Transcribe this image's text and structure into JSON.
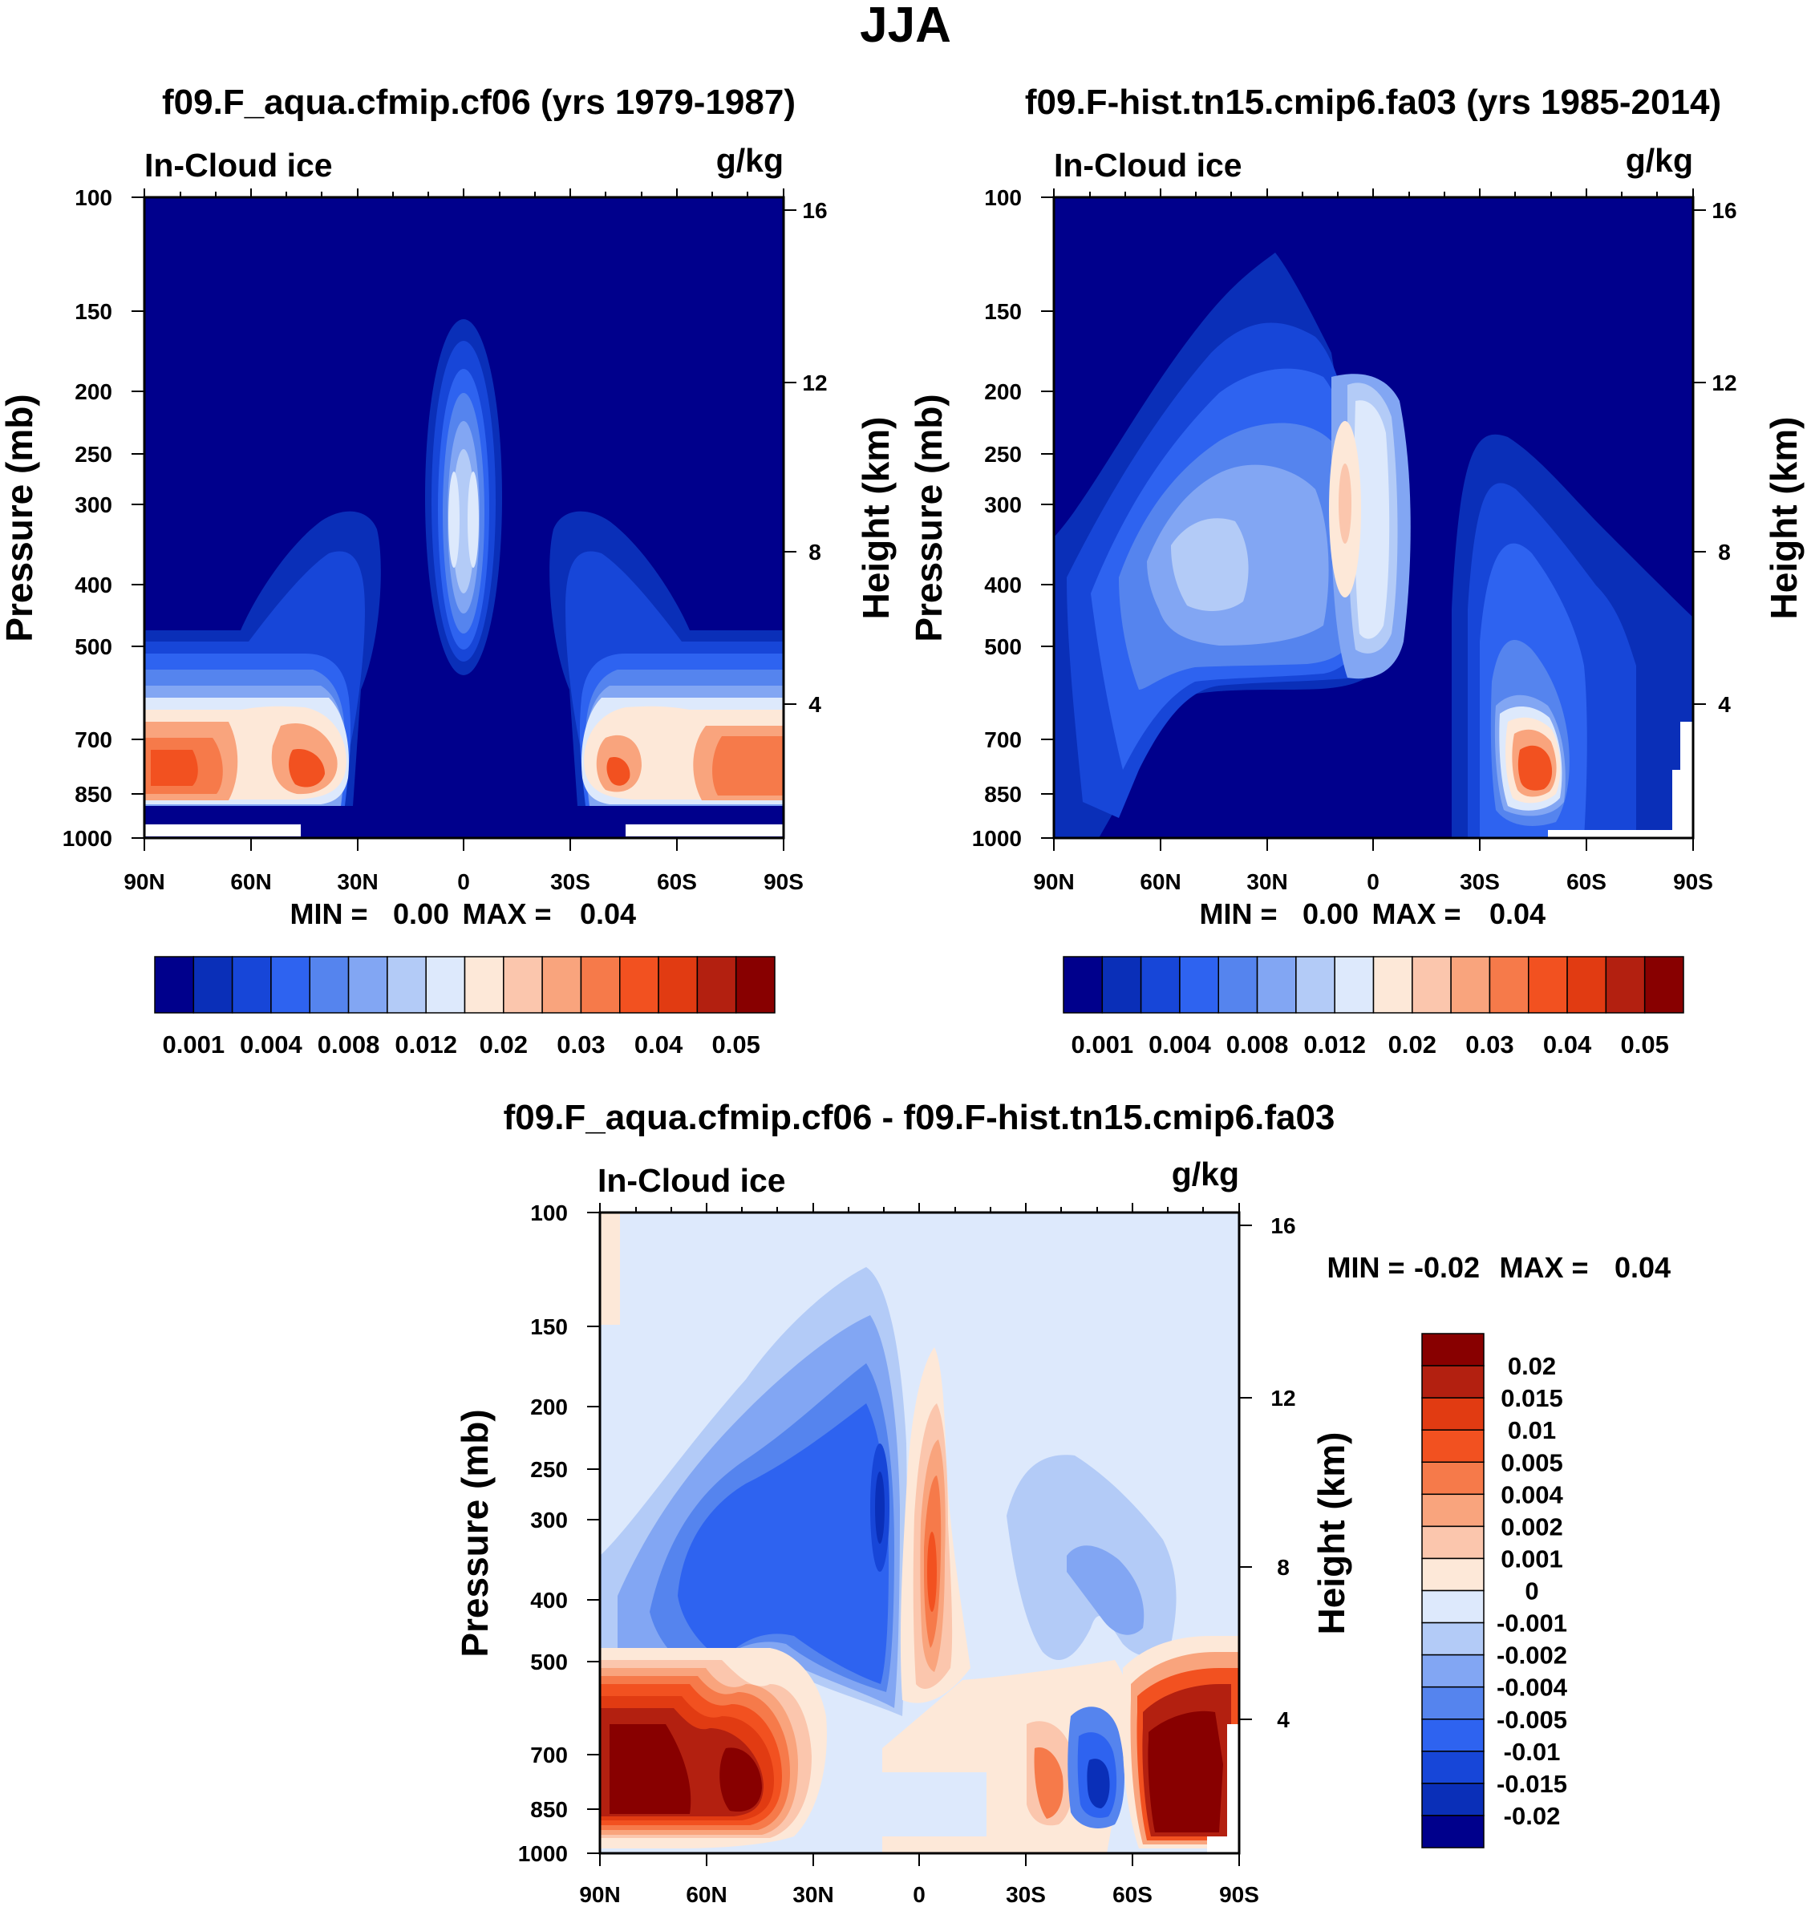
{
  "figure": {
    "title": "JJA"
  },
  "chart_data": [
    {
      "type": "heatmap",
      "id": "panel1",
      "title": "f09.F_aqua.cfmip.cf06 (yrs 1979-1987)",
      "left_label": "In-Cloud ice",
      "right_label": "g/kg",
      "xlabel": "",
      "ylabel": "Pressure (mb)",
      "y2label": "Height (km)",
      "x_ticks": [
        "90N",
        "60N",
        "30N",
        "0",
        "30S",
        "60S",
        "90S"
      ],
      "y_ticks": [
        100,
        150,
        200,
        250,
        300,
        400,
        500,
        700,
        850,
        1000
      ],
      "y2_ticks": [
        16,
        12,
        8,
        4
      ],
      "ylim": [
        1000,
        100
      ],
      "min_label": "MIN =",
      "min_value": "0.00",
      "max_label": "MAX =",
      "max_value": "0.04",
      "min": 0.0,
      "max": 0.04,
      "colorbar_orientation": "horizontal",
      "colorbar_labels": [
        "0.001",
        "0.004",
        "0.008",
        "0.012",
        "0.02",
        "0.03",
        "0.04",
        "0.05"
      ],
      "colorbar_colors": [
        "#00008c",
        "#0a2fb8",
        "#1746d8",
        "#2e63f0",
        "#5584ee",
        "#82a6f3",
        "#b3cbf7",
        "#dde9fc",
        "#fde8d8",
        "#fbc6ad",
        "#f9a47d",
        "#f67a4a",
        "#f25120",
        "#e13b12",
        "#b32010",
        "#880000"
      ]
    },
    {
      "type": "heatmap",
      "id": "panel2",
      "title": "f09.F-hist.tn15.cmip6.fa03 (yrs 1985-2014)",
      "left_label": "In-Cloud ice",
      "right_label": "g/kg",
      "xlabel": "",
      "ylabel": "Pressure (mb)",
      "y2label": "Height (km)",
      "x_ticks": [
        "90N",
        "60N",
        "30N",
        "0",
        "30S",
        "60S",
        "90S"
      ],
      "y_ticks": [
        100,
        150,
        200,
        250,
        300,
        400,
        500,
        700,
        850,
        1000
      ],
      "y2_ticks": [
        16,
        12,
        8,
        4
      ],
      "ylim": [
        1000,
        100
      ],
      "min_label": "MIN =",
      "min_value": "0.00",
      "max_label": "MAX =",
      "max_value": "0.04",
      "min": 0.0,
      "max": 0.04,
      "colorbar_orientation": "horizontal",
      "colorbar_labels": [
        "0.001",
        "0.004",
        "0.008",
        "0.012",
        "0.02",
        "0.03",
        "0.04",
        "0.05"
      ],
      "colorbar_colors": [
        "#00008c",
        "#0a2fb8",
        "#1746d8",
        "#2e63f0",
        "#5584ee",
        "#82a6f3",
        "#b3cbf7",
        "#dde9fc",
        "#fde8d8",
        "#fbc6ad",
        "#f9a47d",
        "#f67a4a",
        "#f25120",
        "#e13b12",
        "#b32010",
        "#880000"
      ]
    },
    {
      "type": "heatmap",
      "id": "panel3",
      "title": "f09.F_aqua.cfmip.cf06 - f09.F-hist.tn15.cmip6.fa03",
      "left_label": "In-Cloud ice",
      "right_label": "g/kg",
      "xlabel": "",
      "ylabel": "Pressure (mb)",
      "y2label": "Height (km)",
      "x_ticks": [
        "90N",
        "60N",
        "30N",
        "0",
        "30S",
        "60S",
        "90S"
      ],
      "y_ticks": [
        100,
        150,
        200,
        250,
        300,
        400,
        500,
        700,
        850,
        1000
      ],
      "y2_ticks": [
        16,
        12,
        8,
        4
      ],
      "ylim": [
        1000,
        100
      ],
      "min_label": "MIN =",
      "min_value": "-0.02",
      "max_label": "MAX =",
      "max_value": "0.04",
      "min": -0.02,
      "max": 0.04,
      "colorbar_orientation": "vertical",
      "colorbar_labels": [
        "0.02",
        "0.015",
        "0.01",
        "0.005",
        "0.004",
        "0.002",
        "0.001",
        "0",
        "-0.001",
        "-0.002",
        "-0.004",
        "-0.005",
        "-0.01",
        "-0.015",
        "-0.02"
      ],
      "colorbar_colors": [
        "#880000",
        "#b32010",
        "#e13b12",
        "#f25120",
        "#f67a4a",
        "#f9a47d",
        "#fbc6ad",
        "#fde8d8",
        "#dde9fc",
        "#b3cbf7",
        "#82a6f3",
        "#5584ee",
        "#2e63f0",
        "#1746d8",
        "#0a2fb8",
        "#00008c"
      ]
    }
  ]
}
